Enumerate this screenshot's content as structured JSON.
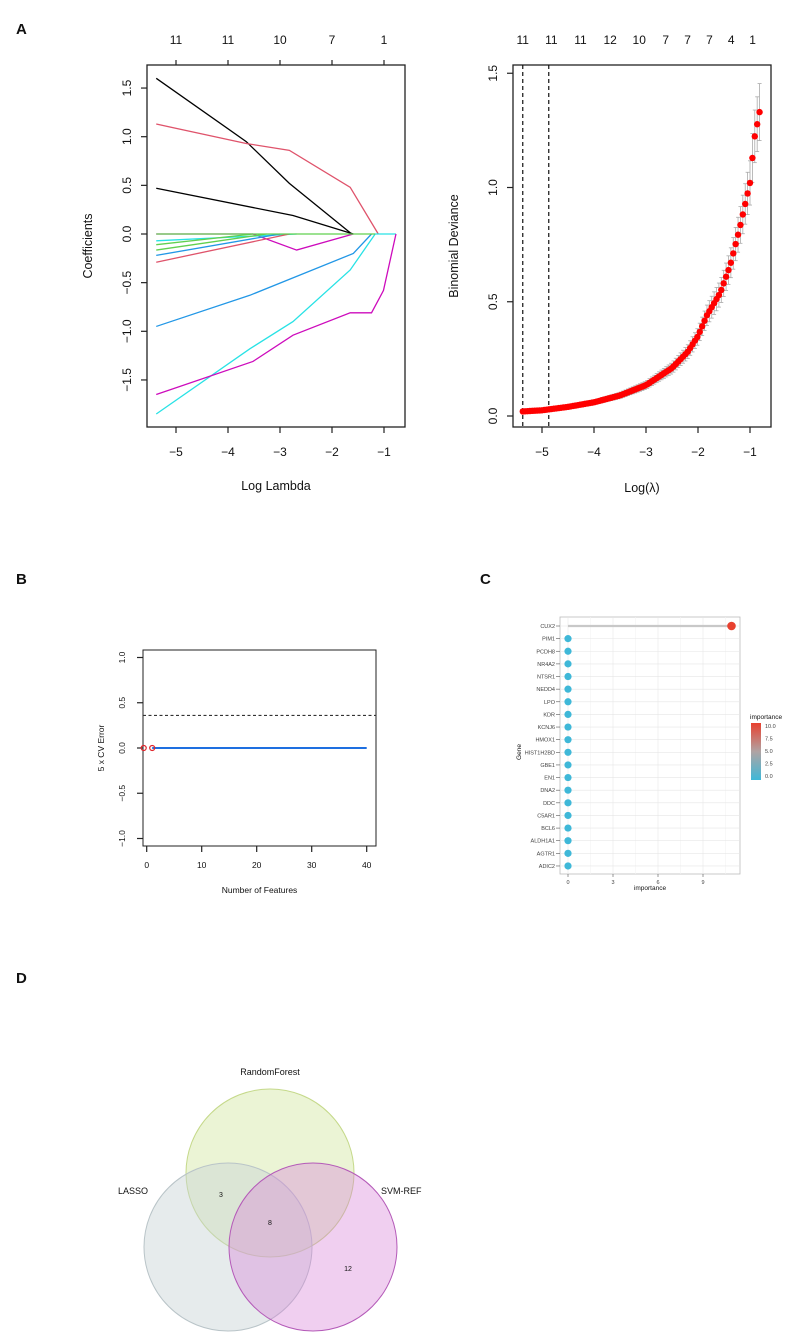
{
  "panel_letters": {
    "a": "A",
    "b": "B",
    "c": "C",
    "d": "D"
  },
  "chart_data": [
    {
      "id": "A-left",
      "type": "line",
      "xlabel": "Log Lambda",
      "ylabel": "Coefficients",
      "xticks": [
        -5,
        -4,
        -3,
        -2,
        -1
      ],
      "xtick_labels": [
        "−5",
        "−4",
        "−3",
        "−2",
        "−1"
      ],
      "yticks": [
        -1.5,
        -1.0,
        -0.5,
        0.0,
        0.5,
        1.0,
        1.5
      ],
      "ytick_labels": [
        "−1.5",
        "−1.0",
        "−0.5",
        "0.0",
        "0.5",
        "1.0",
        "1.5"
      ],
      "top_axis_labels": [
        "11",
        "11",
        "10",
        "7",
        "1"
      ],
      "xlim": [
        -5.5,
        -0.55
      ],
      "ylim": [
        -1.98,
        1.74
      ],
      "series": [
        {
          "name": "path-1",
          "color": "#000000",
          "points": [
            [
              -5.38,
              1.6
            ],
            [
              -3.65,
              0.95
            ],
            [
              -2.82,
              0.52
            ],
            [
              -1.62,
              0
            ]
          ]
        },
        {
          "name": "path-2",
          "color": "#DF536B",
          "points": [
            [
              -5.38,
              1.13
            ],
            [
              -3.65,
              0.93
            ],
            [
              -2.82,
              0.86
            ],
            [
              -1.65,
              0.48
            ],
            [
              -1.11,
              0
            ]
          ]
        },
        {
          "name": "path-3",
          "color": "#000000",
          "points": [
            [
              -5.38,
              0.47
            ],
            [
              -2.75,
              0.19
            ],
            [
              -1.59,
              0
            ]
          ]
        },
        {
          "name": "path-4",
          "color": "#CD0BBC",
          "points": [
            [
              -5.38,
              0
            ],
            [
              -3.52,
              0
            ],
            [
              -2.68,
              -0.165
            ],
            [
              -1.59,
              0
            ]
          ]
        },
        {
          "name": "path-5",
          "color": "#28E2E5",
          "points": [
            [
              -5.38,
              -0.07
            ],
            [
              -2.68,
              0
            ]
          ]
        },
        {
          "name": "path-6",
          "color": "#61D04F",
          "points": [
            [
              -5.38,
              -0.11
            ],
            [
              -3.52,
              0
            ]
          ]
        },
        {
          "name": "path-7",
          "color": "#61D04F",
          "points": [
            [
              -5.38,
              -0.165
            ],
            [
              -3.26,
              0
            ]
          ]
        },
        {
          "name": "path-8",
          "color": "#2297E6",
          "points": [
            [
              -5.38,
              -0.22
            ],
            [
              -3.0,
              0
            ]
          ]
        },
        {
          "name": "path-9",
          "color": "#DF536B",
          "points": [
            [
              -5.38,
              -0.29
            ],
            [
              -2.82,
              0
            ]
          ]
        },
        {
          "name": "path-10",
          "color": "#2297E6",
          "points": [
            [
              -5.38,
              -0.95
            ],
            [
              -3.58,
              -0.63
            ],
            [
              -1.59,
              -0.2
            ],
            [
              -1.24,
              0
            ]
          ]
        },
        {
          "name": "path-11",
          "color": "#28E2E5",
          "points": [
            [
              -5.38,
              -1.85
            ],
            [
              -3.58,
              -1.18
            ],
            [
              -2.75,
              -0.9
            ],
            [
              -1.65,
              -0.37
            ],
            [
              -1.17,
              0
            ],
            [
              -0.77,
              0
            ]
          ]
        },
        {
          "name": "path-12",
          "color": "#CD0BBC",
          "points": [
            [
              -5.38,
              -1.65
            ],
            [
              -3.52,
              -1.31
            ],
            [
              -2.75,
              -1.04
            ],
            [
              -1.65,
              -0.81
            ],
            [
              -1.24,
              -0.81
            ],
            [
              -1.01,
              -0.58
            ],
            [
              -0.77,
              0
            ]
          ]
        },
        {
          "name": "zero-line",
          "color": "#61D04F",
          "points": [
            [
              -5.38,
              0
            ],
            [
              -1.17,
              0
            ]
          ]
        }
      ]
    },
    {
      "id": "A-right",
      "type": "scatter",
      "xlabel": "Log(λ)",
      "ylabel": "Binomial Deviance",
      "xticks": [
        -5,
        -4,
        -3,
        -2,
        -1
      ],
      "xtick_labels": [
        "−5",
        "−4",
        "−3",
        "−2",
        "−1"
      ],
      "yticks": [
        0.0,
        0.5,
        1.0,
        1.5
      ],
      "ytick_labels": [
        "0.0",
        "0.5",
        "1.0",
        "1.5"
      ],
      "top_axis_labels": [
        "11",
        "11",
        "11",
        "12",
        "10",
        "7",
        "7",
        "7",
        "4",
        "1"
      ],
      "top_axis_positions": [
        -5.37,
        -4.82,
        -4.26,
        -3.69,
        -3.13,
        -2.62,
        -2.2,
        -1.78,
        -1.36,
        -0.95
      ],
      "xlim": [
        -5.55,
        -0.55
      ],
      "ylim": [
        -0.05,
        1.54
      ],
      "point_color": "#FF0000",
      "errorbar_color": "#A9A9A9",
      "errorbar_fraction": 0.09,
      "step": 0.046,
      "curve": [
        [
          -5.37,
          0.02
        ],
        [
          -5,
          0.025
        ],
        [
          -4.5,
          0.04
        ],
        [
          -4,
          0.06
        ],
        [
          -3.5,
          0.09
        ],
        [
          -3,
          0.135
        ],
        [
          -2.5,
          0.21
        ],
        [
          -2.2,
          0.28
        ],
        [
          -2,
          0.35
        ],
        [
          -1.83,
          0.44
        ],
        [
          -1.57,
          0.54
        ],
        [
          -1.38,
          0.66
        ],
        [
          -1.2,
          0.82
        ],
        [
          -1.0,
          1.02
        ],
        [
          -0.92,
          1.21
        ],
        [
          -0.79,
          1.36
        ]
      ],
      "vlines": [
        -5.37,
        -4.87
      ]
    },
    {
      "id": "B",
      "type": "line",
      "xlabel": "Number of Features",
      "ylabel": "5 x CV Error",
      "xticks": [
        0,
        10,
        20,
        30,
        40
      ],
      "xtick_labels": [
        "0",
        "10",
        "20",
        "30",
        "40"
      ],
      "yticks": [
        -1.0,
        -0.5,
        0.0,
        0.5,
        1.0
      ],
      "ytick_labels": [
        "−1.0",
        "−0.5",
        "0.0",
        "0.5",
        "1.0"
      ],
      "xlim": [
        -0.7,
        41.7
      ],
      "ylim": [
        -1.08,
        1.08
      ],
      "line": {
        "color": "#1E6FE0",
        "points": [
          [
            1,
            0
          ],
          [
            40,
            0
          ]
        ]
      },
      "reference_line": 0.36,
      "marked_points": [
        [
          0,
          0
        ],
        [
          1,
          0
        ]
      ],
      "marker_color": "#E0252B"
    },
    {
      "id": "C",
      "type": "scatter",
      "xlabel": "importance",
      "ylabel": "Gene",
      "xticks": [
        0,
        3,
        6,
        9
      ],
      "xtick_labels": [
        "0",
        "3",
        "6",
        "9"
      ],
      "genes": [
        "CUX2",
        "PIM1",
        "PCDH8",
        "NR4A2",
        "NTSR1",
        "NEDD4",
        "LPO",
        "KDR",
        "KCNJ6",
        "HMOX1",
        "HIST1H2BD",
        "GBE1",
        "EN1",
        "DNA2",
        "DDC",
        "C5AR1",
        "BCL6",
        "ALDH1A1",
        "AGTR1",
        "ADIC2"
      ],
      "importance": [
        10.9,
        0,
        0,
        0,
        0,
        0,
        0,
        0,
        0,
        0,
        0,
        0,
        0,
        0,
        0,
        0,
        0,
        0,
        0,
        0
      ],
      "legend": {
        "title": "importance",
        "labels": [
          "10.0",
          "7.5",
          "5.0",
          "2.5",
          "0.0"
        ],
        "low_color": "#3FB8D8",
        "high_color": "#E8412F"
      }
    },
    {
      "id": "D",
      "type": "venn",
      "sets": [
        {
          "name": "RandomForest",
          "color": "#C9DE8A"
        },
        {
          "name": "LASSO",
          "color": "#CCD5D8"
        },
        {
          "name": "SVM-REF",
          "color": "#D98AD8"
        }
      ],
      "regions": {
        "lasso_rf": "3",
        "all": "8",
        "svm_only": "12"
      }
    }
  ]
}
